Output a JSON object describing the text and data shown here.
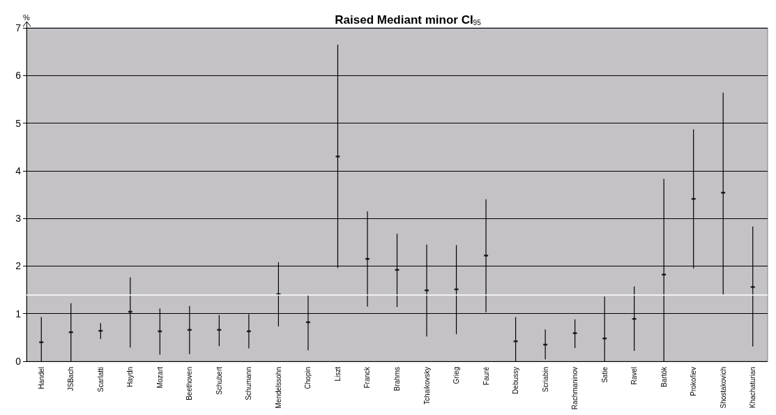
{
  "chart_data": {
    "type": "scatter",
    "title": "Raised Mediant minor CI$_{95}$",
    "ylabel": "%",
    "categories": [
      "Handel",
      "JSBach",
      "Scarlatti",
      "Haydn",
      "Mozart",
      "Beethoven",
      "Schubert",
      "Schumann",
      "Mendelssohn",
      "Chopin",
      "Liszt",
      "Franck",
      "Brahms",
      "Tchaikovsky",
      "Grieg",
      "Fauré",
      "Debussy",
      "Scriabin",
      "Rachmaninov",
      "Satie",
      "Ravel",
      "Bartók",
      "Prokofiev",
      "Shostakovich",
      "Khachaturian"
    ],
    "values": [
      0.4,
      0.61,
      0.64,
      1.04,
      0.63,
      0.66,
      0.66,
      0.63,
      1.41,
      0.82,
      4.3,
      2.15,
      1.92,
      1.49,
      1.51,
      2.22,
      0.42,
      0.35,
      0.59,
      0.48,
      0.89,
      1.82,
      3.41,
      3.54,
      1.56
    ],
    "errors": [
      [
        0,
        0.93
      ],
      [
        0,
        1.22
      ],
      [
        0.47,
        0.8
      ],
      [
        0.29,
        1.76
      ],
      [
        0.14,
        1.11
      ],
      [
        0.15,
        1.16
      ],
      [
        0.32,
        0.97
      ],
      [
        0.27,
        0.99
      ],
      [
        0.73,
        2.08
      ],
      [
        0.23,
        1.39
      ],
      [
        1.96,
        6.65
      ],
      [
        1.15,
        3.15
      ],
      [
        1.14,
        2.68
      ],
      [
        0.52,
        2.45
      ],
      [
        0.57,
        2.44
      ],
      [
        1.03,
        3.4
      ],
      [
        0,
        0.93
      ],
      [
        0.04,
        0.67
      ],
      [
        0.28,
        0.88
      ],
      [
        0,
        1.36
      ],
      [
        0.22,
        1.57
      ],
      [
        0,
        3.83
      ],
      [
        1.95,
        4.87
      ],
      [
        1.39,
        5.64
      ],
      [
        0.31,
        2.83
      ]
    ],
    "color": "#000000",
    "marker": "square",
    "ylim": [
      0,
      7
    ],
    "yticks": [
      0,
      1,
      2,
      3,
      4,
      5,
      6,
      7
    ],
    "grid": "y",
    "ref_lines": [
      {
        "axis": "y",
        "value": 1.4,
        "color": "#ffffff"
      }
    ]
  }
}
